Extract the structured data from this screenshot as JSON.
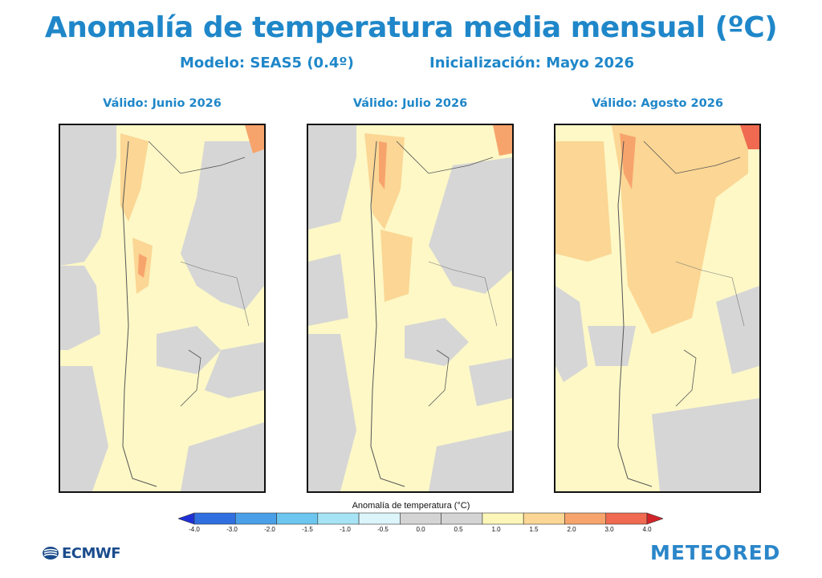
{
  "header": {
    "title": "Anomalía de temperatura media mensual (ºC)",
    "model": "Modelo: SEAS5 (0.4º)",
    "init": "Inicialización: Mayo 2026"
  },
  "panels": [
    {
      "label": "Válido: Junio 2026"
    },
    {
      "label": "Válido: Julio 2026"
    },
    {
      "label": "Válido: Agosto 2026"
    }
  ],
  "legend": {
    "title": "Anomalía de temperatura (°C)",
    "ticks": [
      "-4.0",
      "-3.0",
      "-2.0",
      "-1.5",
      "-1.0",
      "-0.5",
      "0.0",
      "0.5",
      "1.0",
      "1.5",
      "2.0",
      "3.0",
      "4.0"
    ],
    "colors": [
      "#1e2fd8",
      "#2f6fe0",
      "#4aa0e8",
      "#6cc6ef",
      "#a6e4f5",
      "#dcf5fb",
      "#d4d4d4",
      "#d4d4d4",
      "#fdf6b9",
      "#fbd694",
      "#f7a46c",
      "#ef6a50",
      "#d3232a"
    ]
  },
  "logos": {
    "ecmwf": "ECMWF",
    "meteored": "METEORED"
  }
}
